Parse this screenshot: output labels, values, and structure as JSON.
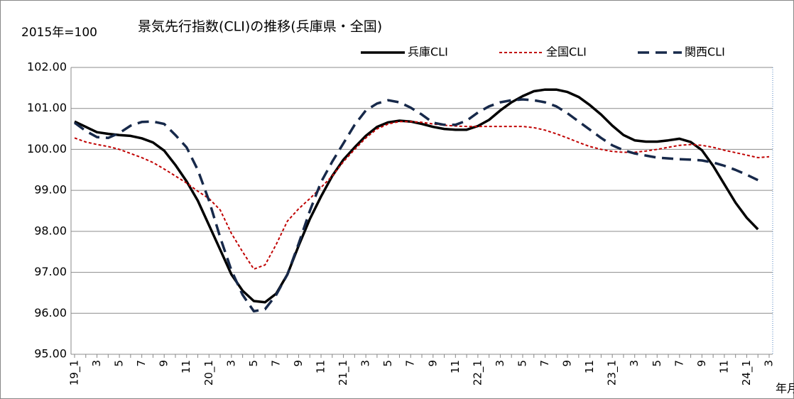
{
  "chart_data": {
    "type": "line",
    "title": "景気先行指数(CLI)の推移(兵庫県・全国)",
    "annotation": "2015年=100",
    "x_label": "年月",
    "categories": [
      "19_1",
      null,
      "3",
      null,
      "5",
      null,
      "7",
      null,
      "9",
      null,
      "11",
      null,
      "20_1",
      null,
      "3",
      null,
      "5",
      null,
      "7",
      null,
      "9",
      null,
      "11",
      null,
      "21_1",
      null,
      "3",
      null,
      "5",
      null,
      "7",
      null,
      "9",
      null,
      "11",
      null,
      "22_1",
      null,
      "3",
      null,
      "5",
      null,
      "7",
      null,
      "9",
      null,
      "11",
      null,
      "23_1",
      null,
      "3",
      null,
      "5",
      null,
      "7",
      null,
      "9",
      null,
      "11",
      null,
      "24_1",
      null,
      "3"
    ],
    "series": [
      {
        "name": "兵庫CLI",
        "color": "#000000",
        "dash": "solid",
        "values": [
          100.68,
          100.55,
          100.42,
          100.38,
          100.35,
          100.33,
          100.27,
          100.17,
          99.97,
          99.62,
          99.22,
          98.75,
          98.15,
          97.55,
          96.95,
          96.55,
          96.3,
          96.27,
          96.48,
          96.95,
          97.65,
          98.3,
          98.85,
          99.35,
          99.75,
          100.05,
          100.33,
          100.55,
          100.66,
          100.7,
          100.68,
          100.62,
          100.55,
          100.5,
          100.48,
          100.48,
          100.57,
          100.72,
          100.95,
          101.15,
          101.3,
          101.42,
          101.46,
          101.46,
          101.4,
          101.28,
          101.08,
          100.85,
          100.58,
          100.35,
          100.22,
          100.19,
          100.19,
          100.22,
          100.26,
          100.18,
          99.98,
          99.6,
          99.15,
          98.7,
          98.33,
          98.05,
          null
        ]
      },
      {
        "name": "全国CLI",
        "color": "#c00000",
        "dash": "dotted",
        "values": [
          100.28,
          100.18,
          100.12,
          100.07,
          100.0,
          99.9,
          99.8,
          99.68,
          99.52,
          99.35,
          99.18,
          98.98,
          98.8,
          98.52,
          97.95,
          97.5,
          97.08,
          97.18,
          97.68,
          98.25,
          98.55,
          98.8,
          99.07,
          99.35,
          99.7,
          100.0,
          100.28,
          100.5,
          100.62,
          100.68,
          100.68,
          100.66,
          100.62,
          100.59,
          100.57,
          100.56,
          100.56,
          100.56,
          100.56,
          100.56,
          100.56,
          100.53,
          100.47,
          100.38,
          100.28,
          100.17,
          100.07,
          100.0,
          99.95,
          99.93,
          99.93,
          99.96,
          100.0,
          100.05,
          100.1,
          100.12,
          100.1,
          100.05,
          99.98,
          99.92,
          99.86,
          99.8,
          99.82
        ]
      },
      {
        "name": "関西CLI",
        "color": "#17294a",
        "dash": "dashed",
        "values": [
          100.65,
          100.45,
          100.3,
          100.28,
          100.4,
          100.58,
          100.67,
          100.68,
          100.62,
          100.35,
          100.05,
          99.5,
          98.75,
          97.85,
          97.05,
          96.45,
          96.05,
          96.1,
          96.45,
          96.95,
          97.7,
          98.5,
          99.2,
          99.7,
          100.15,
          100.6,
          100.95,
          101.12,
          101.2,
          101.15,
          101.02,
          100.85,
          100.65,
          100.6,
          100.6,
          100.7,
          100.9,
          101.05,
          101.15,
          101.2,
          101.22,
          101.2,
          101.15,
          101.05,
          100.88,
          100.68,
          100.48,
          100.28,
          100.1,
          99.98,
          99.9,
          99.85,
          99.8,
          99.78,
          99.76,
          99.75,
          99.73,
          99.68,
          99.6,
          99.5,
          99.38,
          99.25,
          null
        ]
      }
    ],
    "ylim": [
      95,
      102
    ],
    "yticks": [
      {
        "value": 95,
        "label": "95.00"
      },
      {
        "value": 96,
        "label": "96.00"
      },
      {
        "value": 97,
        "label": "97.00"
      },
      {
        "value": 98,
        "label": "98.00"
      },
      {
        "value": 99,
        "label": "99.00"
      },
      {
        "value": 100,
        "label": "100.00"
      },
      {
        "value": 101,
        "label": "101.00"
      },
      {
        "value": 102,
        "label": "102.00"
      }
    ],
    "grid": true,
    "legend": "top-right"
  }
}
